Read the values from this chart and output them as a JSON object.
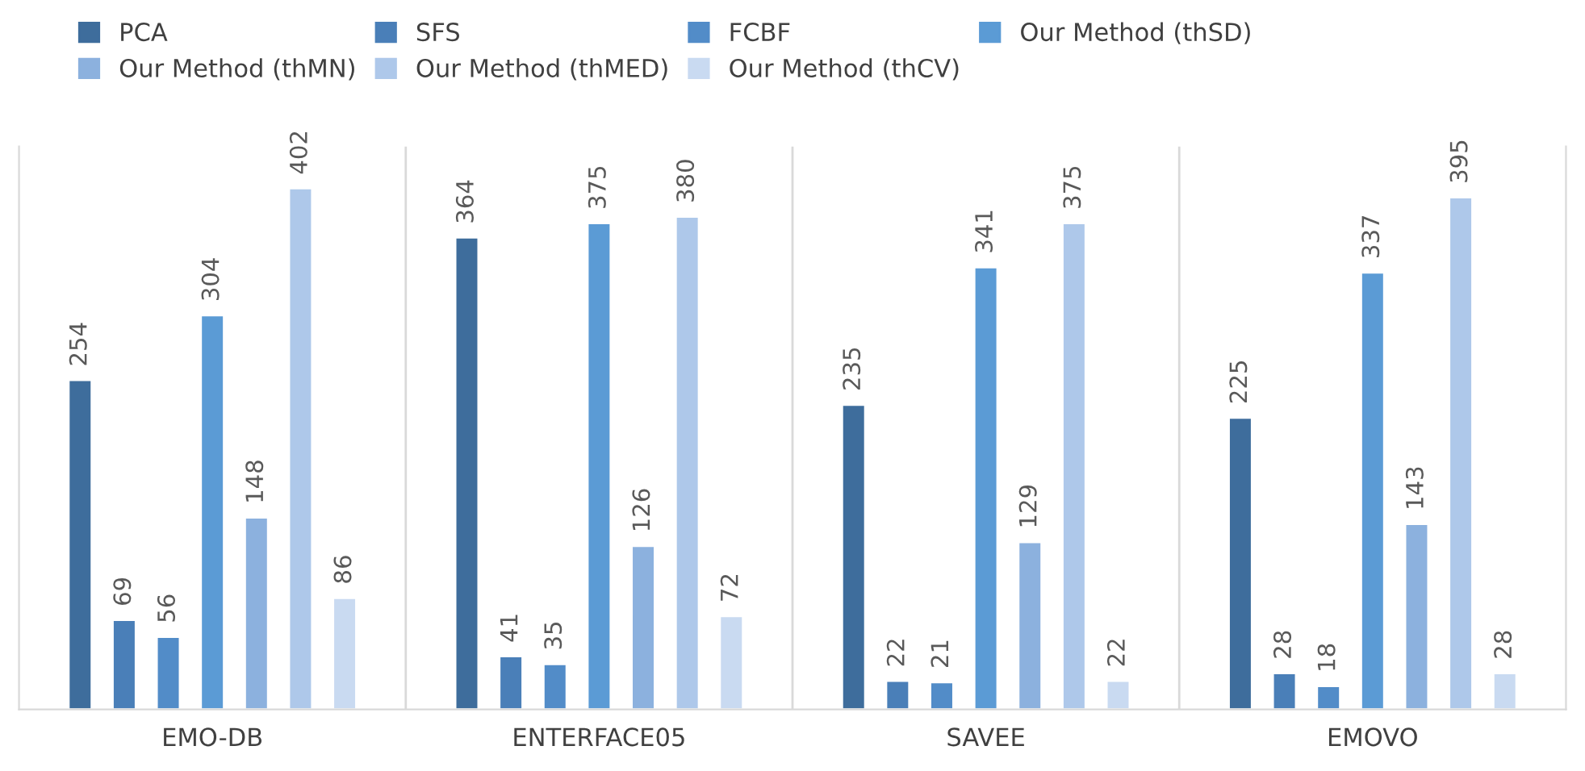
{
  "chart_data": {
    "type": "bar",
    "categories": [
      "EMO-DB",
      "ENTERFACE05",
      "SAVEE",
      "EMOVO"
    ],
    "series": [
      {
        "name": "PCA",
        "color": "#3e6d9c",
        "values": [
          254,
          364,
          235,
          225
        ]
      },
      {
        "name": "SFS",
        "color": "#4a7fb8",
        "values": [
          69,
          41,
          22,
          28
        ]
      },
      {
        "name": "FCBF",
        "color": "#528cc8",
        "values": [
          56,
          35,
          21,
          18
        ]
      },
      {
        "name": "Our Method (thSD)",
        "color": "#5b9bd5",
        "values": [
          304,
          375,
          341,
          337
        ]
      },
      {
        "name": "Our Method (thMN)",
        "color": "#8cb1de",
        "values": [
          148,
          126,
          129,
          143
        ]
      },
      {
        "name": "Our Method (thMED)",
        "color": "#aec8ea",
        "values": [
          402,
          380,
          375,
          395
        ]
      },
      {
        "name": "Our Method (thCV)",
        "color": "#c9daf1",
        "values": [
          86,
          72,
          22,
          28
        ]
      }
    ],
    "data_labels": true,
    "grid": "x",
    "legend": "top",
    "tick_labels": "x"
  }
}
